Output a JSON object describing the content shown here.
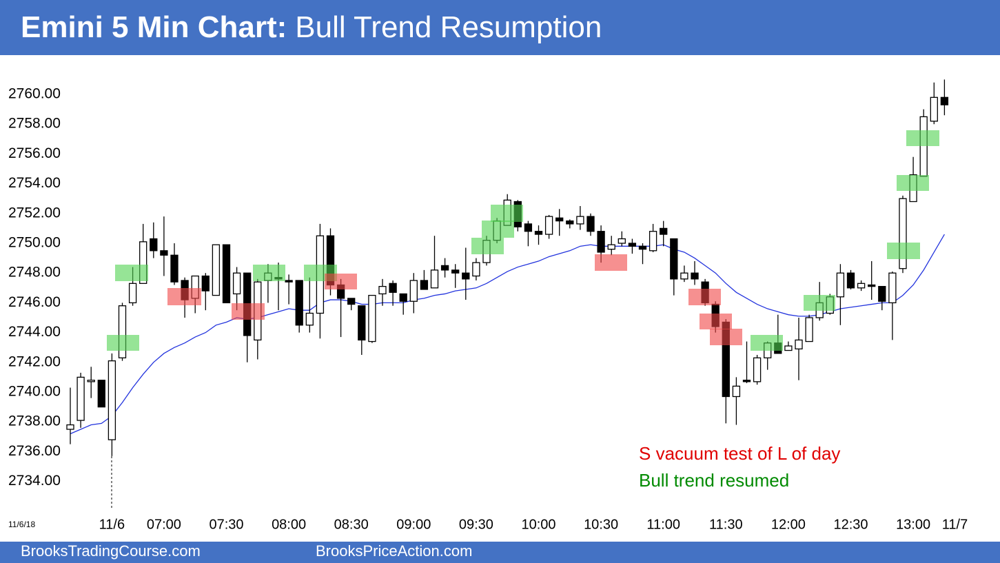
{
  "chart_data": {
    "type": "candlestick",
    "title": "Emini 5 Min Chart:",
    "subtitle": "Bull Trend Resumption",
    "date_label": "11/6/18",
    "annotations": [
      {
        "text": "S vacuum test of L of day",
        "color": "#e00000"
      },
      {
        "text": "Bull trend resumed",
        "color": "#008a00"
      }
    ],
    "footer": [
      "BrooksTradingCourse.com",
      "BrooksPriceAction.com"
    ],
    "categories": [
      null,
      null,
      null,
      null,
      "11/6",
      null,
      null,
      null,
      null,
      "07:00",
      null,
      null,
      null,
      null,
      null,
      "07:30",
      null,
      null,
      null,
      null,
      null,
      "08:00",
      null,
      null,
      null,
      null,
      null,
      "08:30",
      null,
      null,
      null,
      null,
      null,
      "09:00",
      null,
      null,
      null,
      null,
      null,
      "09:30",
      null,
      null,
      null,
      null,
      null,
      "10:00",
      null,
      null,
      null,
      null,
      null,
      "10:30",
      null,
      null,
      null,
      null,
      null,
      "11:00",
      null,
      null,
      null,
      null,
      null,
      "11:30",
      null,
      null,
      null,
      null,
      null,
      "12:00",
      null,
      null,
      null,
      null,
      null,
      "12:30",
      null,
      null,
      null,
      null,
      null,
      "13:00",
      null,
      null,
      null,
      "11/7"
    ],
    "open": [
      2737.5,
      2738.1,
      2740.7,
      2740.8,
      2736.8,
      2742.3,
      2746.0,
      2747.3,
      2750.3,
      2749.5,
      2749.2,
      2747.5,
      2746.3,
      2747.8,
      2746.5,
      2749.9,
      2746.6,
      2748.0,
      2743.5,
      2747.5,
      2747.7,
      2747.5,
      2747.5,
      2744.5,
      2745.3,
      2750.5,
      2747.2,
      2746.3,
      2745.8,
      2743.4,
      2746.6,
      2747.3,
      2746.6,
      2746.1,
      2747.5,
      2747.0,
      2748.5,
      2748.2,
      2748.0,
      2747.8,
      2748.7,
      2750.2,
      2751.2,
      2752.8,
      2751.3,
      2750.8,
      2750.6,
      2751.7,
      2751.5,
      2751.3,
      2751.8,
      2750.8,
      2749.6,
      2750.0,
      2750.0,
      2749.8,
      2749.5,
      2751.0,
      2750.3,
      2747.6,
      2748.0,
      2747.4,
      2745.9,
      2744.7,
      2739.7,
      2740.8,
      2740.7,
      2742.3,
      2743.3,
      2742.8,
      2742.9,
      2743.4,
      2745.0,
      2745.3,
      2746.4,
      2748.0,
      2747.0,
      2747.2,
      2747.1,
      2746.0,
      2748.3,
      2752.8,
      2754.5,
      2758.2,
      2759.8,
      null
    ],
    "high": [
      2740.3,
      2741.3,
      2741.7,
      2740.8,
      2742.6,
      2746.0,
      2748.4,
      2751.3,
      2751.4,
      2751.8,
      2750.0,
      2747.7,
      2747.8,
      2748.0,
      2749.9,
      2749.9,
      2748.4,
      2748.0,
      2747.6,
      2748.6,
      2748.7,
      2747.9,
      2747.5,
      2747.7,
      2751.3,
      2751.0,
      2747.6,
      2746.3,
      2745.8,
      2746.5,
      2747.6,
      2747.5,
      2746.6,
      2748.0,
      2748.2,
      2750.5,
      2749.0,
      2748.6,
      2749.7,
      2749.0,
      2750.5,
      2751.7,
      2753.3,
      2752.9,
      2751.5,
      2751.2,
      2751.9,
      2752.3,
      2751.6,
      2752.5,
      2752.0,
      2751.2,
      2750.5,
      2750.8,
      2750.3,
      2750.0,
      2751.3,
      2751.5,
      2750.3,
      2748.5,
      2748.8,
      2747.6,
      2746.1,
      2744.9,
      2741.0,
      2743.4,
      2742.5,
      2743.4,
      2745.2,
      2743.4,
      2745.0,
      2745.2,
      2747.4,
      2746.6,
      2748.6,
      2748.2,
      2747.5,
      2748.8,
      2747.1,
      2748.1,
      2753.2,
      2755.8,
      2759.0,
      2760.8,
      2761.0,
      null
    ],
    "low": [
      2736.5,
      2737.6,
      2739.6,
      2739.0,
      2735.7,
      2742.1,
      2745.8,
      2747.3,
      2749.0,
      2747.8,
      2747.2,
      2745.0,
      2745.3,
      2745.5,
      2746.5,
      2746.0,
      2745.5,
      2742.0,
      2742.2,
      2746.0,
      2745.5,
      2745.9,
      2744.0,
      2744.0,
      2743.6,
      2746.5,
      2743.7,
      2745.5,
      2742.5,
      2743.3,
      2745.8,
      2745.8,
      2745.2,
      2745.3,
      2746.9,
      2747.0,
      2747.7,
      2747.0,
      2746.2,
      2747.5,
      2748.5,
      2750.0,
      2751.2,
      2750.8,
      2749.8,
      2749.9,
      2750.3,
      2750.5,
      2751.0,
      2750.9,
      2750.5,
      2748.7,
      2749.2,
      2749.8,
      2749.3,
      2748.6,
      2749.4,
      2749.8,
      2746.5,
      2747.4,
      2747.2,
      2745.8,
      2744.0,
      2737.9,
      2737.8,
      2740.6,
      2740.5,
      2741.5,
      2742.6,
      2742.8,
      2740.8,
      2743.4,
      2744.8,
      2745.2,
      2744.5,
      2746.9,
      2746.8,
      2746.2,
      2745.5,
      2743.5,
      2748.0,
      2752.8,
      2754.5,
      2758.0,
      2758.6,
      null
    ],
    "close": [
      2737.8,
      2741.0,
      2740.8,
      2739.0,
      2742.1,
      2745.8,
      2747.3,
      2750.1,
      2749.5,
      2749.2,
      2747.4,
      2746.2,
      2747.8,
      2746.8,
      2749.9,
      2746.0,
      2748.0,
      2743.8,
      2747.4,
      2748.0,
      2747.6,
      2747.4,
      2744.5,
      2745.3,
      2750.5,
      2747.2,
      2746.3,
      2745.9,
      2743.5,
      2746.5,
      2747.1,
      2746.7,
      2746.1,
      2747.5,
      2746.9,
      2748.2,
      2748.2,
      2748.0,
      2747.6,
      2748.7,
      2750.2,
      2751.5,
      2752.9,
      2751.1,
      2750.8,
      2750.6,
      2751.8,
      2751.5,
      2751.3,
      2751.8,
      2750.8,
      2749.4,
      2749.9,
      2750.3,
      2749.8,
      2749.6,
      2750.8,
      2750.6,
      2747.6,
      2748.0,
      2747.6,
      2746.0,
      2744.4,
      2739.7,
      2740.4,
      2740.7,
      2742.3,
      2743.3,
      2742.6,
      2743.1,
      2743.5,
      2745.0,
      2746.0,
      2746.4,
      2748.0,
      2747.0,
      2747.3,
      2747.1,
      2746.1,
      2748.0,
      2753.0,
      2754.6,
      2758.5,
      2759.8,
      2759.3,
      null
    ],
    "ema": [
      2737.2,
      2737.5,
      2737.8,
      2737.9,
      2738.4,
      2739.3,
      2740.3,
      2741.2,
      2742.0,
      2742.6,
      2743.0,
      2743.3,
      2743.7,
      2744.0,
      2744.5,
      2744.7,
      2745.0,
      2744.9,
      2745.0,
      2745.2,
      2745.4,
      2745.6,
      2745.5,
      2745.5,
      2746.0,
      2746.2,
      2746.2,
      2746.1,
      2745.9,
      2745.9,
      2746.0,
      2746.0,
      2746.0,
      2746.2,
      2746.3,
      2746.5,
      2746.6,
      2746.8,
      2746.9,
      2747.0,
      2747.3,
      2747.7,
      2748.1,
      2748.4,
      2748.6,
      2748.8,
      2749.1,
      2749.3,
      2749.5,
      2749.8,
      2749.9,
      2749.8,
      2749.8,
      2749.8,
      2749.8,
      2749.8,
      2749.8,
      2749.9,
      2749.6,
      2749.4,
      2749.0,
      2748.5,
      2748.0,
      2747.3,
      2746.7,
      2746.3,
      2745.9,
      2745.6,
      2745.4,
      2745.2,
      2745.1,
      2745.1,
      2745.2,
      2745.4,
      2745.6,
      2745.7,
      2745.8,
      2745.9,
      2746.0,
      2746.0,
      2746.5,
      2747.2,
      2748.2,
      2749.4,
      2750.6,
      null
    ],
    "ema_color": "#2233dd",
    "ylim": [
      2732,
      2762
    ],
    "yticks": [
      {
        "value": 2734,
        "label": "2734.00"
      },
      {
        "value": 2736,
        "label": "2736.00"
      },
      {
        "value": 2738,
        "label": "2738.00"
      },
      {
        "value": 2740,
        "label": "2740.00"
      },
      {
        "value": 2742,
        "label": "2742.00"
      },
      {
        "value": 2744,
        "label": "2744.00"
      },
      {
        "value": 2746,
        "label": "2746.00"
      },
      {
        "value": 2748,
        "label": "2748.00"
      },
      {
        "value": 2750,
        "label": "2750.00"
      },
      {
        "value": 2752,
        "label": "2752.00"
      },
      {
        "value": 2754,
        "label": "2754.00"
      },
      {
        "value": 2756,
        "label": "2756.00"
      },
      {
        "value": 2758,
        "label": "2758.00"
      },
      {
        "value": 2760,
        "label": "2760.00"
      }
    ],
    "grid": false
  }
}
